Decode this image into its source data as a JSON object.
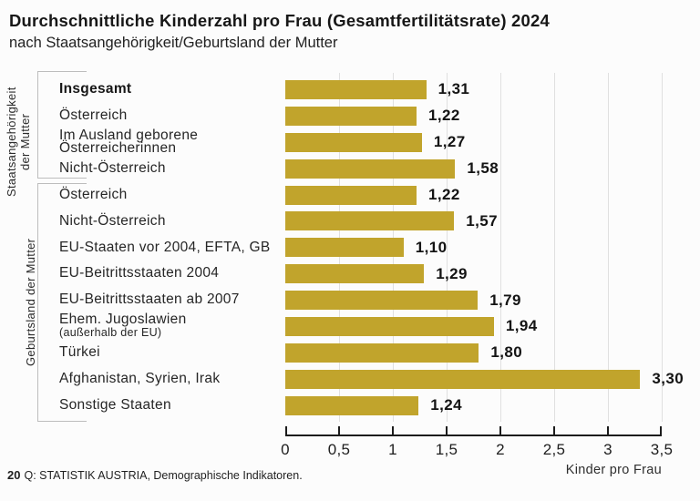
{
  "title": "Durchschnittliche Kinderzahl pro Frau (Gesamtfertilitätsrate) 2024",
  "subtitle": "nach Staatsangehörigkeit/Geburtsland der Mutter",
  "footer": {
    "page_number": "20",
    "source": "Q: STATISTIK AUSTRIA, Demographische Indikatoren."
  },
  "colors": {
    "bar": "#c1a42c",
    "gridline": "#e0e0e0",
    "axis": "#1c1c1c",
    "bracket": "#bdbdbd"
  },
  "chart_data": {
    "type": "bar",
    "orientation": "horizontal",
    "title": "Durchschnittliche Kinderzahl pro Frau (Gesamtfertilitätsrate) 2024",
    "subtitle": "nach Staatsangehörigkeit/Geburtsland der Mutter",
    "xlabel": "Kinder pro Frau",
    "xlim": [
      0,
      3.5
    ],
    "x_ticks": [
      "0",
      "0,5",
      "1",
      "1,5",
      "2",
      "2,5",
      "3",
      "3,5"
    ],
    "grid": true,
    "legend": "none",
    "groups": [
      {
        "label": "Staatsangehörigkeit\nder Mutter",
        "row_start": 0,
        "row_end": 3
      },
      {
        "label": "Geburtsland der Mutter",
        "row_start": 4,
        "row_end": 12
      }
    ],
    "categories": [
      "Insgesamt",
      "Österreich",
      "Im Ausland geborene Österreicherinnen",
      "Nicht-Österreich",
      "Österreich",
      "Nicht-Österreich",
      "EU-Staaten vor 2004, EFTA, GB",
      "EU-Beitrittsstaaten 2004",
      "EU-Beitrittsstaaten ab 2007",
      "Ehem. Jugoslawien (außerhalb der EU)",
      "Türkei",
      "Afghanistan, Syrien, Irak",
      "Sonstige Staaten"
    ],
    "values": [
      1.31,
      1.22,
      1.27,
      1.58,
      1.22,
      1.57,
      1.1,
      1.29,
      1.79,
      1.94,
      1.8,
      3.3,
      1.24
    ],
    "rows": [
      {
        "lines": [
          "Insgesamt"
        ],
        "bold": true,
        "value": 1.31,
        "value_label": "1,31"
      },
      {
        "lines": [
          "Österreich"
        ],
        "value": 1.22,
        "value_label": "1,22"
      },
      {
        "lines": [
          "Im Ausland geborene",
          "Österreicherinnen"
        ],
        "value": 1.27,
        "value_label": "1,27"
      },
      {
        "lines": [
          "Nicht-Österreich"
        ],
        "value": 1.58,
        "value_label": "1,58"
      },
      {
        "lines": [
          "Österreich"
        ],
        "value": 1.22,
        "value_label": "1,22"
      },
      {
        "lines": [
          "Nicht-Österreich"
        ],
        "value": 1.57,
        "value_label": "1,57"
      },
      {
        "lines": [
          "EU-Staaten vor 2004, EFTA, GB"
        ],
        "value": 1.1,
        "value_label": "1,10"
      },
      {
        "lines": [
          "EU-Beitrittsstaaten 2004"
        ],
        "value": 1.29,
        "value_label": "1,29"
      },
      {
        "lines": [
          "EU-Beitrittsstaaten ab 2007"
        ],
        "value": 1.79,
        "value_label": "1,79"
      },
      {
        "lines": [
          "Ehem. Jugoslawien",
          "(außerhalb der EU)"
        ],
        "small_second": true,
        "value": 1.94,
        "value_label": "1,94"
      },
      {
        "lines": [
          "Türkei"
        ],
        "value": 1.8,
        "value_label": "1,80"
      },
      {
        "lines": [
          "Afghanistan, Syrien, Irak"
        ],
        "value": 3.3,
        "value_label": "3,30"
      },
      {
        "lines": [
          "Sonstige Staaten"
        ],
        "value": 1.24,
        "value_label": "1,24"
      }
    ]
  }
}
